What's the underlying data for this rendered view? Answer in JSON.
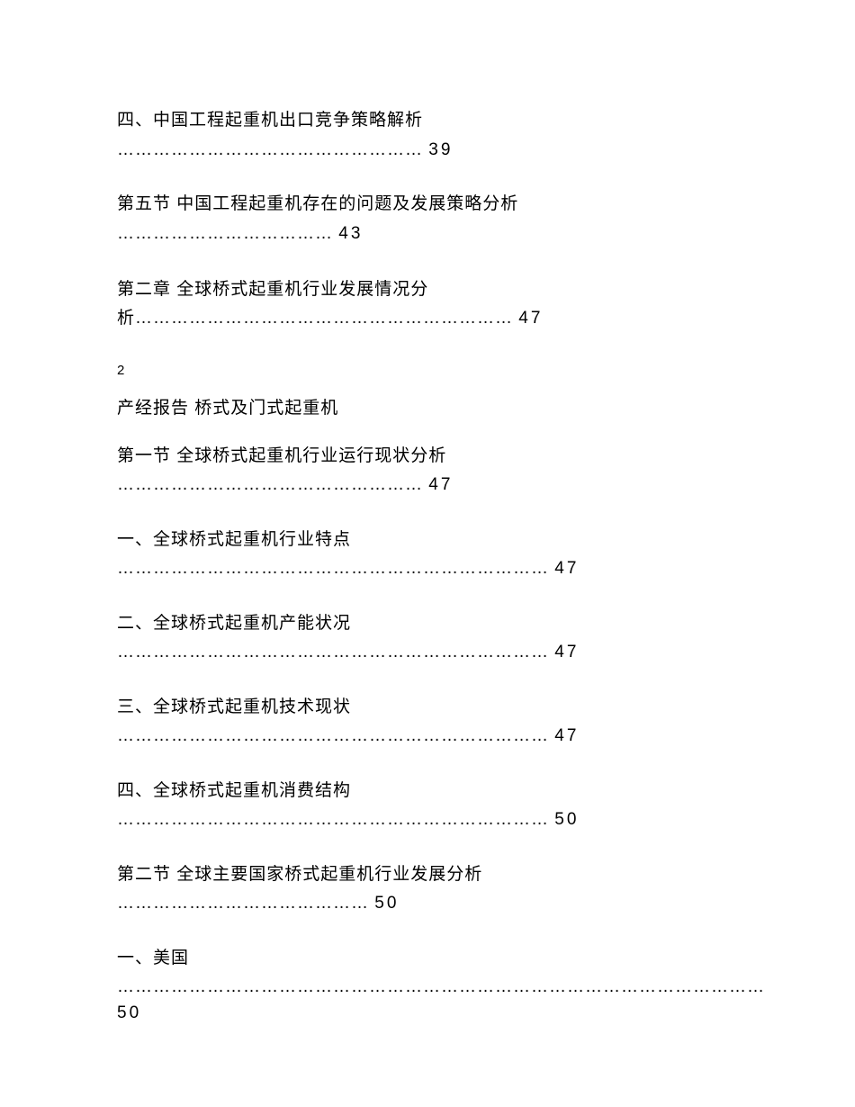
{
  "entries": [
    {
      "title": "四、中国工程起重机出口竞争策略解析",
      "dots": "……………………………………………",
      "page": "39"
    },
    {
      "title": "第五节 中国工程起重机存在的问题及发展策略分析",
      "dots": "………………………………",
      "page": "43"
    },
    {
      "title_line1": "第二章 全球桥式起重机行业发展情况分",
      "title_line2": "析………………………………………………………",
      "page": "47"
    }
  ],
  "page_marker": "2",
  "doc_header": "产经报告 桥式及门式起重机",
  "entries2": [
    {
      "title": "第一节 全球桥式起重机行业运行现状分析",
      "dots": "……………………………………………",
      "page": "47"
    },
    {
      "title": "一、全球桥式起重机行业特点",
      "dots": "………………………………………………………………",
      "page": "47"
    },
    {
      "title": "二、全球桥式起重机产能状况",
      "dots": "………………………………………………………………",
      "page": "47"
    },
    {
      "title": "三、全球桥式起重机技术现状",
      "dots": "………………………………………………………………",
      "page": "47"
    },
    {
      "title": "四、全球桥式起重机消费结构",
      "dots": "………………………………………………………………",
      "page": "50"
    },
    {
      "title": "第二节 全球主要国家桥式起重机行业发展分析",
      "dots": "……………………………………",
      "page": "50"
    },
    {
      "title": "一、美国",
      "dots": "………………………………………………………………………………………………",
      "page": "50"
    }
  ]
}
